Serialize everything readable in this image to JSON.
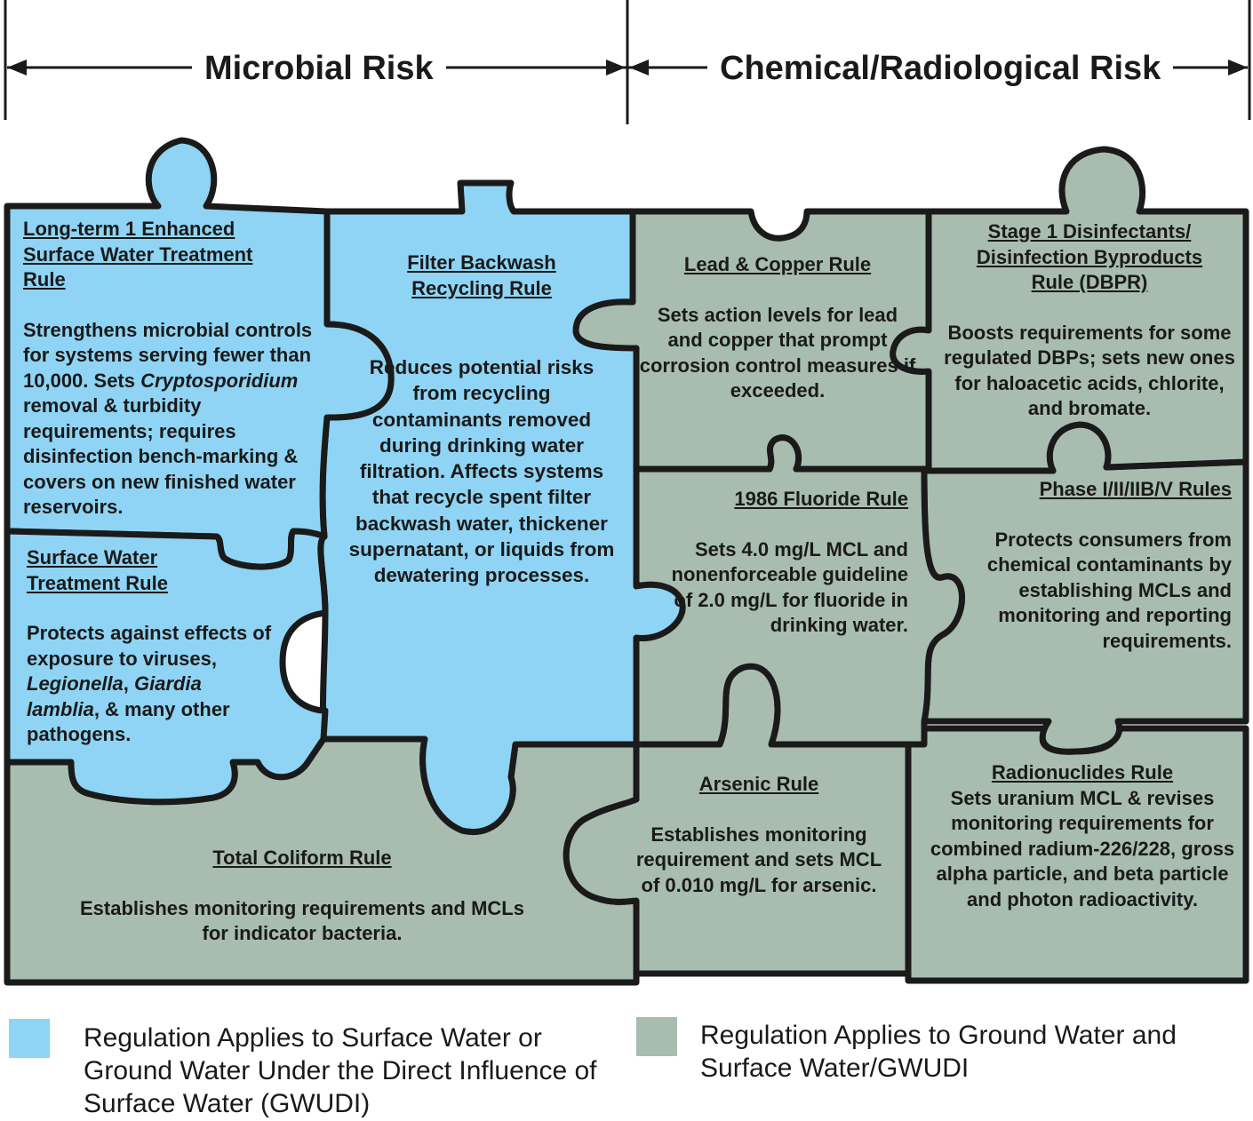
{
  "headers": {
    "microbial": "Microbial Risk",
    "chemical": "Chemical/Radiological Risk"
  },
  "colors": {
    "surface": "#8fd4f4",
    "ground": "#a8bdb0",
    "outline": "#1a1a1a"
  },
  "pieces": {
    "lt1eswtr": {
      "title": "Long-term 1 Enhanced Surface Water Treatment Rule",
      "desc_a": "Strengthens microbial controls for systems serving fewer than 10,000. Sets ",
      "desc_em": "Cryptosporidium",
      "desc_b": " removal & turbidity requirements; requires disinfection bench-marking & covers on new finished water reservoirs."
    },
    "fbrr": {
      "title": "Filter Backwash Recycling Rule",
      "desc": "Reduces potential risks from recycling contaminants removed during drinking water filtration. Affects systems that recycle spent filter backwash water, thickener supernatant, or liquids from dewatering processes."
    },
    "swtr": {
      "title": "Surface Water Treatment Rule",
      "desc_a": "Protects against effects of exposure to viruses, ",
      "desc_em1": "Legionella",
      "desc_b": ", ",
      "desc_em2": "Giardia lamblia",
      "desc_c": ", & many other pathogens."
    },
    "tcr": {
      "title": "Total Coliform Rule",
      "desc": "Establishes monitoring requirements and MCLs for indicator bacteria."
    },
    "lcr": {
      "title": "Lead & Copper Rule",
      "desc": "Sets action levels for lead and copper that prompt corrosion control measures if exceeded."
    },
    "dbpr": {
      "title": "Stage 1 Disinfectants/ Disinfection Byproducts Rule (DBPR)",
      "desc": "Boosts requirements for some regulated DBPs; sets new ones for haloacetic acids, chlorite, and bromate."
    },
    "fluoride": {
      "title": "1986 Fluoride Rule",
      "desc": "Sets 4.0 mg/L MCL and nonenforceable guideline of 2.0 mg/L for fluoride in drinking water."
    },
    "phase": {
      "title": "Phase I/II/IIB/V Rules",
      "desc": "Protects consumers from chemical contaminants by establishing MCLs and monitoring and reporting requirements."
    },
    "arsenic": {
      "title": "Arsenic Rule",
      "desc": "Establishes monitoring requirement and sets MCL of 0.010 mg/L for arsenic."
    },
    "radio": {
      "title": "Radionuclides Rule",
      "desc": "Sets uranium MCL & revises monitoring requirements for combined radium-226/228, gross alpha particle, and beta particle and photon radioactivity."
    }
  },
  "legend": {
    "surface": "Regulation Applies to Surface Water or Ground Water Under the Direct Influence of Surface Water (GWUDI)",
    "ground": "Regulation Applies to Ground Water and Surface Water/GWUDI"
  }
}
